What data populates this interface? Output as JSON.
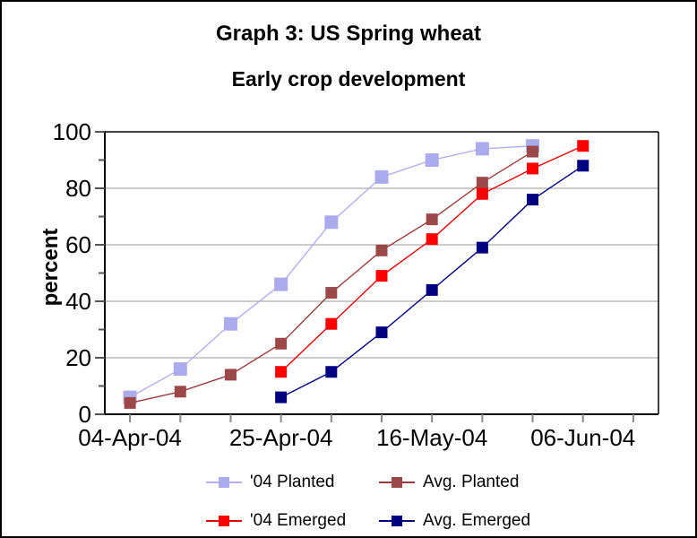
{
  "header": {
    "title": "Graph 3: US Spring wheat",
    "subtitle": "Early crop development"
  },
  "chart_data": {
    "type": "line",
    "title": "Graph 3: US Spring wheat",
    "subtitle": "Early crop development",
    "xlabel": "",
    "ylabel": "percent",
    "ylim": [
      0,
      100
    ],
    "y_major_ticks": [
      0,
      20,
      40,
      60,
      80,
      100
    ],
    "y_minor_tick_step": 10,
    "grid": true,
    "legend_position": "bottom",
    "categories": [
      "04-Apr-04",
      "11-Apr-04",
      "18-Apr-04",
      "25-Apr-04",
      "02-May-04",
      "09-May-04",
      "16-May-04",
      "23-May-04",
      "30-May-04",
      "06-Jun-04",
      "13-Jun-04"
    ],
    "x_tick_labels": [
      "04-Apr-04",
      "25-Apr-04",
      "16-May-04",
      "06-Jun-04"
    ],
    "x_labeled_every": 3,
    "series": [
      {
        "name": "'04 Planted",
        "color": "#aaaaec",
        "line_color": "#b0b0ee",
        "marker_size": 15,
        "values": [
          6,
          16,
          32,
          46,
          68,
          84,
          90,
          94,
          95,
          null,
          null
        ]
      },
      {
        "name": "Avg. Planted",
        "color": "#9c4848",
        "line_color": "#9a3c3c",
        "marker_size": 13,
        "values": [
          4,
          8,
          14,
          25,
          43,
          58,
          69,
          82,
          93,
          null,
          null
        ]
      },
      {
        "name": "'04 Emerged",
        "color": "#ff0000",
        "line_color": "#e60000",
        "marker_size": 13,
        "values": [
          null,
          null,
          null,
          15,
          32,
          49,
          62,
          78,
          87,
          95,
          null
        ]
      },
      {
        "name": "Avg. Emerged",
        "color": "#000080",
        "line_color": "#000080",
        "marker_size": 13,
        "values": [
          null,
          null,
          null,
          6,
          15,
          29,
          44,
          59,
          76,
          88,
          null
        ]
      }
    ],
    "style": {
      "gridline_color": "#999999",
      "axis_color": "#000000",
      "x_tick_color": "#888888",
      "y_tick_color": "#555555",
      "frame_color": "#000000",
      "background": "#ffffff"
    }
  }
}
